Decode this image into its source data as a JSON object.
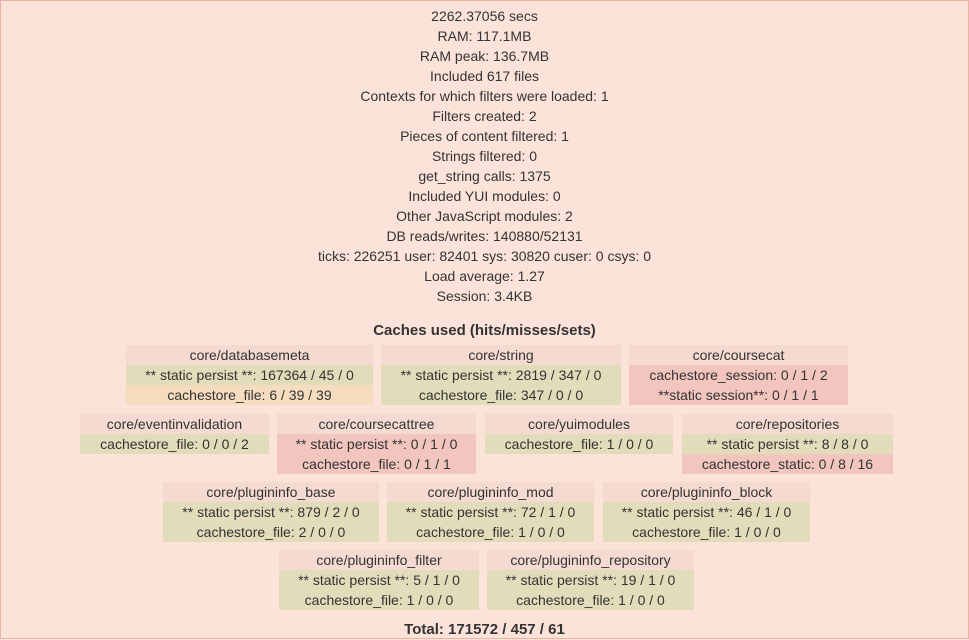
{
  "stats": [
    "2262.37056 secs",
    "RAM: 117.1MB",
    "RAM peak: 136.7MB",
    "Included 617 files",
    "Contexts for which filters were loaded: 1",
    "Filters created: 2",
    "Pieces of content filtered: 1",
    "Strings filtered: 0",
    "get_string calls: 1375",
    "Included YUI modules: 0",
    "Other JavaScript modules: 2",
    "DB reads/writes: 140880/52131",
    "ticks: 226251 user: 82401 sys: 30820 cuser: 0 csys: 0",
    "Load average: 1.27",
    "Session: 3.4KB"
  ],
  "caches_title": "Caches used (hits/misses/sets)",
  "caches": {
    "databasemeta": {
      "name": "core/databasemeta",
      "rows": [
        "** static persist **: 167364 / 45 / 0",
        "cachestore_file: 6 / 39 / 39"
      ]
    },
    "string": {
      "name": "core/string",
      "rows": [
        "** static persist **: 2819 / 347 / 0",
        "cachestore_file: 347 / 0 / 0"
      ]
    },
    "coursecat": {
      "name": "core/coursecat",
      "rows": [
        "cachestore_session: 0 / 1 / 2",
        "**static session**: 0 / 1 / 1"
      ]
    },
    "eventinvalidation": {
      "name": "core/eventinvalidation",
      "rows": [
        "cachestore_file: 0 / 0 / 2"
      ]
    },
    "coursecattree": {
      "name": "core/coursecattree",
      "rows": [
        "** static persist **: 0 / 1 / 0",
        "cachestore_file: 0 / 1 / 1"
      ]
    },
    "yuimodules": {
      "name": "core/yuimodules",
      "rows": [
        "cachestore_file: 1 / 0 / 0"
      ]
    },
    "repositories": {
      "name": "core/repositories",
      "rows": [
        "** static persist **: 8 / 8 / 0",
        "cachestore_static: 0 / 8 / 16"
      ]
    },
    "plugininfo_base": {
      "name": "core/plugininfo_base",
      "rows": [
        "** static persist **: 879 / 2 / 0",
        "cachestore_file: 2 / 0 / 0"
      ]
    },
    "plugininfo_mod": {
      "name": "core/plugininfo_mod",
      "rows": [
        "** static persist **: 72 / 1 / 0",
        "cachestore_file: 1 / 0 / 0"
      ]
    },
    "plugininfo_block": {
      "name": "core/plugininfo_block",
      "rows": [
        "** static persist **: 46 / 1 / 0",
        "cachestore_file: 1 / 0 / 0"
      ]
    },
    "plugininfo_filter": {
      "name": "core/plugininfo_filter",
      "rows": [
        "** static persist **: 5 / 1 / 0",
        "cachestore_file: 1 / 0 / 0"
      ]
    },
    "plugininfo_repository": {
      "name": "core/plugininfo_repository",
      "rows": [
        "** static persist **: 19 / 1 / 0",
        "cachestore_file: 1 / 0 / 0"
      ]
    }
  },
  "total": "Total: 171572 / 457 / 61",
  "colors": {
    "background": "#fce3da",
    "cache_name": "#f4dad0",
    "ok": "#e2dcbb",
    "warn": "#f5dcbe",
    "bad": "#f2c6be"
  }
}
